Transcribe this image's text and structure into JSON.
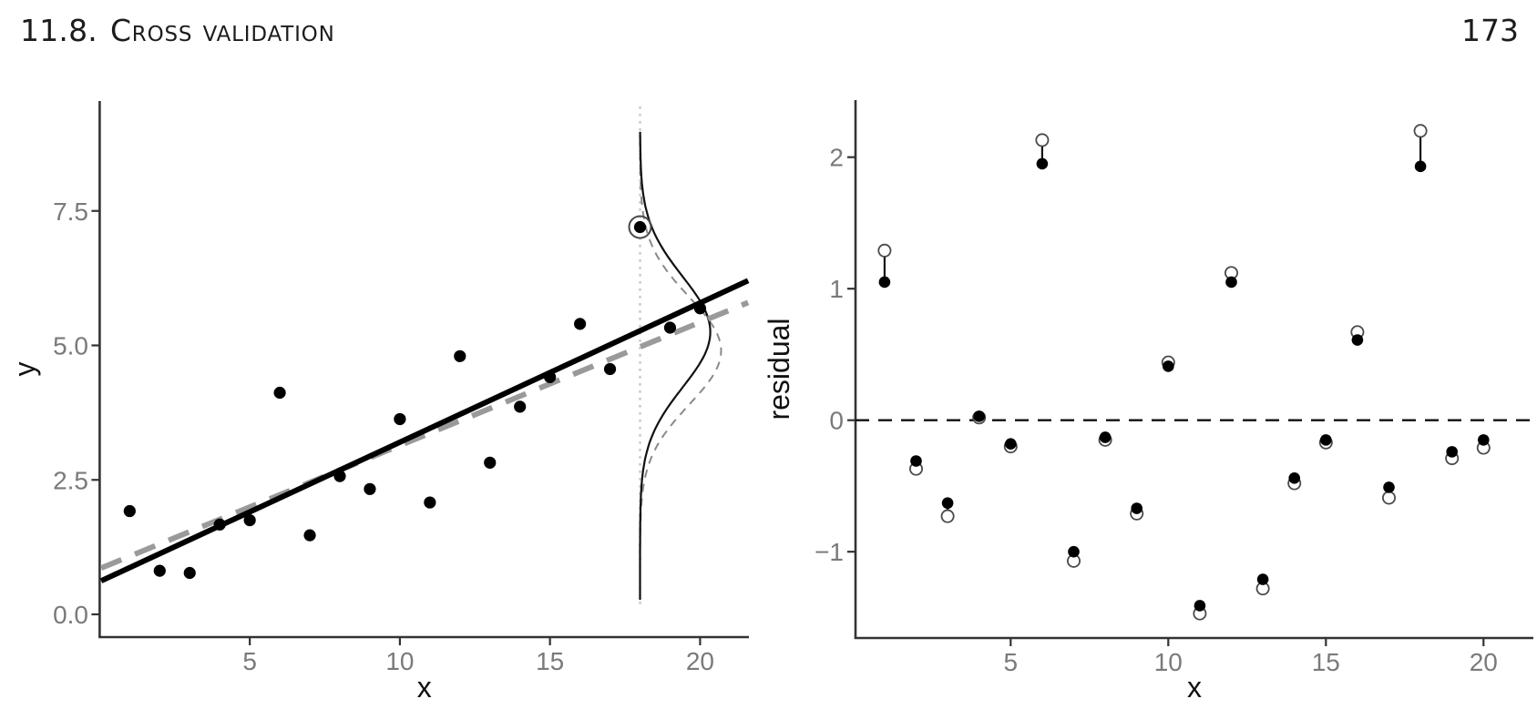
{
  "page": {
    "section_number": "11.8.",
    "section_title": "Cross validation",
    "page_number": "173"
  },
  "colors": {
    "header_text": "#1c1c1c",
    "tick_label": "#7a7a7a",
    "axis": "#333333",
    "fit_solid": "#000000",
    "fit_dashed": "#9a9a9a",
    "vline_dotted": "#c9c9c9",
    "density_solid": "#111111",
    "density_dashed": "#8a8a8a",
    "point_fill": "#000000",
    "open_circle_stroke": "#4a4a4a",
    "zero_line": "#111111"
  },
  "chart_data": [
    {
      "type": "scatter",
      "panel": "left",
      "xlabel": "x",
      "ylabel": "y",
      "x_ticks": [
        5,
        10,
        15,
        20
      ],
      "x_tick_labels": [
        "5",
        "10",
        "15",
        "20"
      ],
      "y_ticks": [
        0.0,
        2.5,
        5.0,
        7.5
      ],
      "y_tick_labels": [
        "0.0",
        "2.5",
        "5.0",
        "7.5"
      ],
      "xlim": [
        0,
        21.6
      ],
      "ylim": [
        -0.4,
        9.5
      ],
      "grid": "off",
      "x": [
        1,
        2,
        3,
        4,
        5,
        6,
        7,
        8,
        9,
        10,
        11,
        12,
        13,
        14,
        15,
        16,
        17,
        18,
        19,
        20
      ],
      "y": [
        1.92,
        0.81,
        0.77,
        1.67,
        1.75,
        4.12,
        1.47,
        2.57,
        2.33,
        3.63,
        2.08,
        4.8,
        2.82,
        3.86,
        4.41,
        5.4,
        4.56,
        7.2,
        5.33,
        5.69
      ],
      "highlight_x": 18,
      "fit_line_solid": {
        "intercept": 0.61,
        "slope": 0.259,
        "style": "solid black",
        "meaning": "fit on all data"
      },
      "fit_line_dashed": {
        "intercept": 0.85,
        "slope": 0.229,
        "style": "dashed gray",
        "meaning": "fit without held-out point x=18"
      },
      "vline_dotted_x": 18,
      "densities": [
        {
          "style": "solid",
          "orientation": "vertical-at-x18",
          "center_y": 5.25,
          "sd_y": 1.03,
          "max_offset_x_units": 2.34
        },
        {
          "style": "dashed",
          "orientation": "vertical-at-x18",
          "center_y": 4.9,
          "sd_y": 1.0,
          "max_offset_x_units": 2.7
        }
      ]
    },
    {
      "type": "scatter-pairs",
      "panel": "right",
      "xlabel": "x",
      "ylabel": "residual",
      "x_ticks": [
        5,
        10,
        15,
        20
      ],
      "x_tick_labels": [
        "5",
        "10",
        "15",
        "20"
      ],
      "y_ticks": [
        2,
        1,
        0,
        -1
      ],
      "y_tick_labels": [
        "2",
        "1",
        "0",
        "−1"
      ],
      "xlim": [
        0,
        21.6
      ],
      "ylim": [
        -1.66,
        2.43
      ],
      "grid": "off",
      "hline_dashed_y": 0,
      "x": [
        1,
        2,
        3,
        4,
        5,
        6,
        7,
        8,
        9,
        10,
        11,
        12,
        13,
        14,
        15,
        16,
        17,
        18,
        19,
        20
      ],
      "series": [
        {
          "name": "residual_filled",
          "marker": "filled-dot",
          "values": [
            1.05,
            -0.31,
            -0.63,
            0.03,
            -0.18,
            1.95,
            -1.0,
            -0.13,
            -0.67,
            0.41,
            -1.41,
            1.05,
            -1.21,
            -0.44,
            -0.15,
            0.61,
            -0.51,
            1.93,
            -0.24,
            -0.15
          ]
        },
        {
          "name": "residual_open_loo",
          "marker": "open-circle",
          "values": [
            1.29,
            -0.37,
            -0.73,
            0.02,
            -0.2,
            2.13,
            -1.07,
            -0.15,
            -0.71,
            0.44,
            -1.47,
            1.12,
            -1.28,
            -0.48,
            -0.17,
            0.67,
            -0.59,
            2.2,
            -0.29,
            -0.21
          ]
        }
      ]
    }
  ]
}
